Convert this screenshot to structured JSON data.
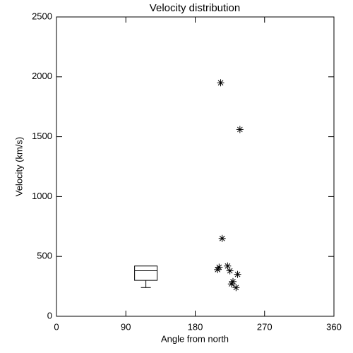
{
  "chart_data": {
    "type": "scatter",
    "title": "Velocity distribution",
    "xlabel": "Angle from north",
    "ylabel": "Velocity (km/s)",
    "x": [
      213,
      238,
      215,
      211,
      209,
      222,
      225,
      235,
      229,
      227,
      233
    ],
    "values": [
      1950,
      1560,
      650,
      410,
      390,
      420,
      380,
      350,
      290,
      270,
      240
    ],
    "color": "#000000",
    "box": {
      "x": 116,
      "whislo": 240,
      "q1": 300,
      "med": 380,
      "q3": 420,
      "whishi": 420
    },
    "xlim": [
      0,
      360
    ],
    "xticks": [
      0,
      90,
      180,
      270,
      360
    ],
    "ylim": [
      0,
      2500
    ],
    "yticks": [
      0,
      500,
      1000,
      1500,
      2000,
      2500
    ],
    "grid": false
  }
}
